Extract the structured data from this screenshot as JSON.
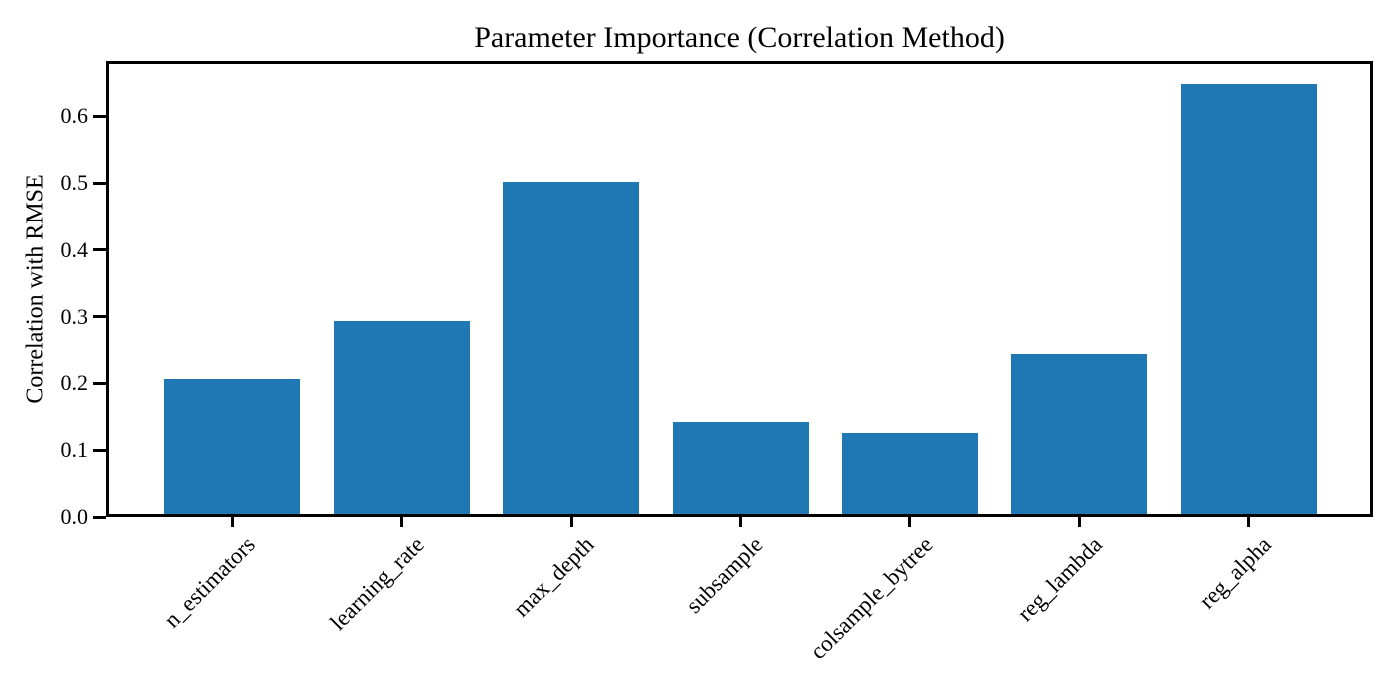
{
  "chart_data": {
    "type": "bar",
    "title": "Parameter Importance (Correlation Method)",
    "xlabel": "",
    "ylabel": "Correlation with RMSE",
    "categories": [
      "n_estimators",
      "learning_rate",
      "max_depth",
      "subsample",
      "colsample_bytree",
      "reg_lambda",
      "reg_alpha"
    ],
    "values": [
      0.207,
      0.293,
      0.502,
      0.142,
      0.126,
      0.244,
      0.648
    ],
    "yticks": [
      0.0,
      0.1,
      0.2,
      0.3,
      0.4,
      0.5,
      0.6
    ],
    "ytick_labels": [
      "0.0",
      "0.1",
      "0.2",
      "0.3",
      "0.4",
      "0.5",
      "0.6"
    ],
    "ylim": [
      0,
      0.683
    ],
    "bar_color": "#1f77b4",
    "axis_color": "#000000",
    "background_color": "#ffffff",
    "grid": false,
    "legend_position": "none",
    "x_tick_rotation_deg": 45
  }
}
